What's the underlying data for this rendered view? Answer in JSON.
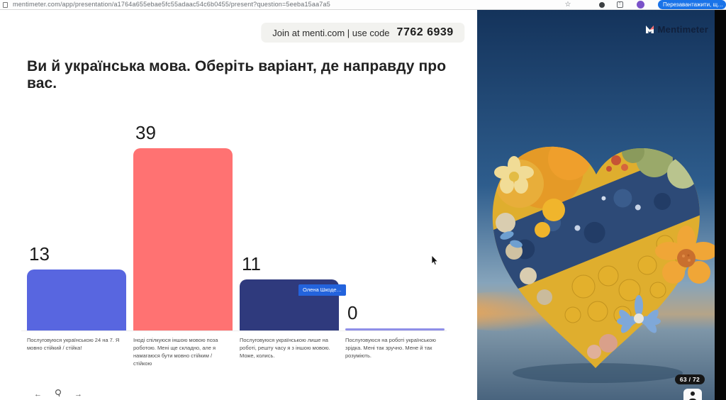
{
  "browser": {
    "url": "mentimeter.com/app/presentation/a1764a655ebae5fc55adaac54c6b0455/present?question=5eeba15aa7a5",
    "star_glyph": "☆",
    "update_button_label": "Перезавантажити, щ…",
    "update_button_color": "#1a73e8"
  },
  "banner": {
    "join_text": "Join at menti.com | use code",
    "code": "7762 6939"
  },
  "slide": {
    "title": "Ви й українська мова. Оберіть варіант, де направду про вас."
  },
  "chart_data": {
    "type": "bar",
    "title": "Ви й українська мова. Оберіть варіант, де направду про вас.",
    "categories": [
      "Послуговуюся українською 24 на 7. Я мовно стійкий / стійка!",
      "Іноді спілкуюся іншою мовою поза роботою. Мені ще складно, але я намагаюся бути мовно стійким / стійкою",
      "Послуговуюся українською лише на роботі, решту часу я з іншою мовою. Може, колись.",
      "Послуговуюся на роботі українською зрідка. Мені так зручно. Мене й так розуміють."
    ],
    "values": [
      13,
      39,
      11,
      0
    ],
    "value_labels": [
      "13",
      "39",
      "11",
      "0"
    ],
    "bar_colors": [
      "#5866e0",
      "#ff7272",
      "#2f3a7d",
      "#8f8fe8"
    ],
    "ylim": [
      0,
      39
    ],
    "grid": false,
    "legend": false
  },
  "collab_tooltip": {
    "name": "Олена Шкоде…",
    "color": "#2363dd"
  },
  "brand": {
    "name": "Mentimeter"
  },
  "pagination": {
    "current": "63",
    "separator": " / ",
    "total": "72"
  },
  "toolbar": {
    "prev": "←",
    "next": "→"
  }
}
